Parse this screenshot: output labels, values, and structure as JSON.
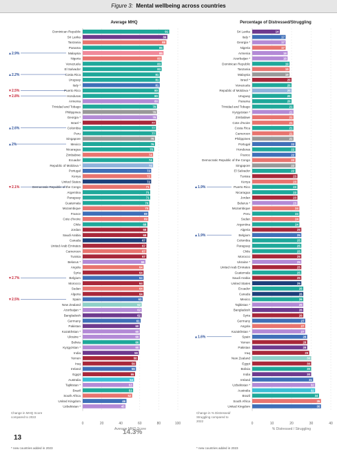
{
  "header": {
    "figure_label": "Figure 3:",
    "title": "Mental wellbeing across countries"
  },
  "page_number": "13",
  "left_note": "Change in MHQ Score compared to 2022",
  "right_note": "Change in % Distressed/ Struggling compared to 2022",
  "footnote": "* new countries added in 2023",
  "avg_badge": "14.3%",
  "colors": {
    "teal": "#1fa89a",
    "cyan": "#3cbfd6",
    "coral": "#e8746f",
    "pink": "#f08a9a",
    "blue": "#3f6fb8",
    "darkred": "#a8283a",
    "navy": "#1d3f7a",
    "gray": "#999999",
    "purple": "#6e3a8e",
    "lilac": "#b38ad6",
    "lightblue": "#8fb3dc",
    "lightteal": "#8fd0c8"
  },
  "chart_data": [
    {
      "type": "bar",
      "title": "Average MHQ",
      "xlabel": "Average MHQ Score",
      "xlim": [
        0,
        100
      ],
      "xticks": [
        "0",
        "20",
        "40",
        "60",
        "80",
        "100"
      ],
      "bars": [
        {
          "c": "Dominican Republic",
          "v": 91,
          "col": "teal"
        },
        {
          "c": "Sri Lanka",
          "v": 89,
          "col": "purple"
        },
        {
          "c": "Tanzania",
          "v": 88,
          "col": "coral"
        },
        {
          "c": "Panama",
          "v": 85,
          "col": "teal"
        },
        {
          "c": "Malaysia",
          "v": 85,
          "col": "pink",
          "ch": "▲2.9%"
        },
        {
          "c": "Nigeria",
          "v": 83,
          "col": "coral"
        },
        {
          "c": "Venezuela",
          "v": 83,
          "col": "teal"
        },
        {
          "c": "El Salvador",
          "v": 83,
          "col": "teal"
        },
        {
          "c": "Costa Rica",
          "v": 81,
          "col": "teal",
          "ch": "▲2.2%"
        },
        {
          "c": "Uruguay",
          "v": 81,
          "col": "teal"
        },
        {
          "c": "Italy *",
          "v": 81,
          "col": "blue"
        },
        {
          "c": "Puerto Rico",
          "v": 80,
          "col": "teal",
          "ch": "▼2.5%"
        },
        {
          "c": "Honduras",
          "v": 80,
          "col": "teal",
          "ch": "▼2.8%"
        },
        {
          "c": "Armenia",
          "v": 80,
          "col": "lilac"
        },
        {
          "c": "Trinidad and Tobago",
          "v": 78,
          "col": "teal"
        },
        {
          "c": "Philippines",
          "v": 78,
          "col": "gray"
        },
        {
          "c": "Georgia *",
          "v": 78,
          "col": "lilac"
        },
        {
          "c": "Israel *",
          "v": 77,
          "col": "darkred"
        },
        {
          "c": "Colombia",
          "v": 77,
          "col": "teal",
          "ch": "▲2.6%"
        },
        {
          "c": "Peru",
          "v": 77,
          "col": "teal"
        },
        {
          "c": "Singapore",
          "v": 76,
          "col": "gray"
        },
        {
          "c": "Mexico",
          "v": 76,
          "col": "teal",
          "ch": "▲2%"
        },
        {
          "c": "Nicaragua",
          "v": 75,
          "col": "teal"
        },
        {
          "c": "Zimbabwe",
          "v": 74,
          "col": "coral"
        },
        {
          "c": "Ecuador",
          "v": 74,
          "col": "teal"
        },
        {
          "c": "Republic of Moldova *",
          "v": 74,
          "col": "lightblue"
        },
        {
          "c": "Portugal",
          "v": 72,
          "col": "blue"
        },
        {
          "c": "Kenya",
          "v": 72,
          "col": "coral"
        },
        {
          "c": "United States",
          "v": 72,
          "col": "navy"
        },
        {
          "c": "Democratic Republic of the Congo",
          "v": 71,
          "col": "coral",
          "ch": "▼2.1%"
        },
        {
          "c": "Argentina",
          "v": 71,
          "col": "teal"
        },
        {
          "c": "Paraguay",
          "v": 71,
          "col": "teal"
        },
        {
          "c": "Guatemala",
          "v": 70,
          "col": "teal"
        },
        {
          "c": "Mozambique",
          "v": 70,
          "col": "coral"
        },
        {
          "c": "France",
          "v": 69,
          "col": "blue"
        },
        {
          "c": "Cote d'Ivoire",
          "v": 69,
          "col": "coral"
        },
        {
          "c": "Chile",
          "v": 68,
          "col": "teal"
        },
        {
          "c": "Jordan",
          "v": 68,
          "col": "darkred"
        },
        {
          "c": "Saudi Arabia",
          "v": 68,
          "col": "darkred"
        },
        {
          "c": "Canada",
          "v": 67,
          "col": "navy"
        },
        {
          "c": "United Arab Emirates",
          "v": 67,
          "col": "darkred"
        },
        {
          "c": "Cameroon",
          "v": 67,
          "col": "coral"
        },
        {
          "c": "Tunisia",
          "v": 67,
          "col": "darkred"
        },
        {
          "c": "Belarus *",
          "v": 66,
          "col": "lilac"
        },
        {
          "c": "Angola",
          "v": 64,
          "col": "coral"
        },
        {
          "c": "Syria",
          "v": 64,
          "col": "darkred"
        },
        {
          "c": "Belgium",
          "v": 64,
          "col": "blue",
          "ch": "▼2.7%"
        },
        {
          "c": "Morocco",
          "v": 64,
          "col": "darkred"
        },
        {
          "c": "Sudan",
          "v": 64,
          "col": "coral"
        },
        {
          "c": "Algeria",
          "v": 64,
          "col": "darkred"
        },
        {
          "c": "Spain",
          "v": 63,
          "col": "blue",
          "ch": "▼2.5%"
        },
        {
          "c": "New Zealand",
          "v": 62,
          "col": "lightteal"
        },
        {
          "c": "Azerbaijan *",
          "v": 62,
          "col": "lilac"
        },
        {
          "c": "Bangladesh",
          "v": 62,
          "col": "purple"
        },
        {
          "c": "Germany",
          "v": 61,
          "col": "blue"
        },
        {
          "c": "Pakistan",
          "v": 60,
          "col": "purple"
        },
        {
          "c": "Kazakhstan *",
          "v": 60,
          "col": "lilac"
        },
        {
          "c": "Ukraine *",
          "v": 60,
          "col": "lilac"
        },
        {
          "c": "Bolivia",
          "v": 60,
          "col": "teal"
        },
        {
          "c": "Kyrgyzstan *",
          "v": 60,
          "col": "lilac"
        },
        {
          "c": "India",
          "v": 59,
          "col": "purple"
        },
        {
          "c": "Yemen",
          "v": 58,
          "col": "darkred"
        },
        {
          "c": "Iraq",
          "v": 56,
          "col": "darkred"
        },
        {
          "c": "Ireland",
          "v": 56,
          "col": "blue"
        },
        {
          "c": "Egypt",
          "v": 55,
          "col": "darkred"
        },
        {
          "c": "Australia",
          "v": 54,
          "col": "cyan"
        },
        {
          "c": "Tajikistan *",
          "v": 53,
          "col": "lilac"
        },
        {
          "c": "Brazil",
          "v": 53,
          "col": "teal"
        },
        {
          "c": "South Africa",
          "v": 52,
          "col": "coral"
        },
        {
          "c": "United Kingdom",
          "v": 46,
          "col": "blue"
        },
        {
          "c": "Uzbekistan *",
          "v": 45,
          "col": "lilac"
        }
      ]
    },
    {
      "type": "bar",
      "title": "Percentage of Distressed/Struggling",
      "xlabel": "% Distressed / Struggling",
      "xlim": [
        0,
        40
      ],
      "xticks": [
        "0",
        "10",
        "20",
        "30",
        "40"
      ],
      "bars": [
        {
          "c": "Sri Lanka",
          "v": 14,
          "col": "purple"
        },
        {
          "c": "Italy *",
          "v": 17,
          "col": "blue"
        },
        {
          "c": "Georgia *",
          "v": 17,
          "col": "lilac"
        },
        {
          "c": "Nigeria",
          "v": 17,
          "col": "coral"
        },
        {
          "c": "Armenia",
          "v": 18,
          "col": "lilac"
        },
        {
          "c": "Azerbaijan *",
          "v": 18,
          "col": "lilac"
        },
        {
          "c": "Dominican Republic",
          "v": 19,
          "col": "teal"
        },
        {
          "c": "Tanzania",
          "v": 19,
          "col": "coral"
        },
        {
          "c": "Malaysia",
          "v": 19,
          "col": "gray"
        },
        {
          "c": "Israel *",
          "v": 20,
          "col": "darkred"
        },
        {
          "c": "Venezuela",
          "v": 20,
          "col": "teal"
        },
        {
          "c": "Republic of Moldova *",
          "v": 20,
          "col": "lightblue"
        },
        {
          "c": "Uruguay",
          "v": 20,
          "col": "teal"
        },
        {
          "c": "Panama",
          "v": 20,
          "col": "teal"
        },
        {
          "c": "Trinidad and Tobago",
          "v": 21,
          "col": "teal"
        },
        {
          "c": "Kyrgyzstan *",
          "v": 21,
          "col": "lilac"
        },
        {
          "c": "Zimbabwe",
          "v": 21,
          "col": "coral"
        },
        {
          "c": "Cote d'Ivoire",
          "v": 21,
          "col": "coral"
        },
        {
          "c": "Costa Rica",
          "v": 21,
          "col": "teal"
        },
        {
          "c": "Cameroon",
          "v": 21,
          "col": "coral"
        },
        {
          "c": "Philippines",
          "v": 21,
          "col": "gray"
        },
        {
          "c": "Portugal",
          "v": 22,
          "col": "blue"
        },
        {
          "c": "Honduras",
          "v": 22,
          "col": "teal"
        },
        {
          "c": "France",
          "v": 22,
          "col": "blue"
        },
        {
          "c": "Democratic Republic of the Congo",
          "v": 22,
          "col": "coral"
        },
        {
          "c": "Singapore",
          "v": 22,
          "col": "gray"
        },
        {
          "c": "El Salvador",
          "v": 22,
          "col": "teal"
        },
        {
          "c": "Tunisia",
          "v": 23,
          "col": "darkred"
        },
        {
          "c": "Kenya",
          "v": 23,
          "col": "coral"
        },
        {
          "c": "Puerto Rico",
          "v": 23,
          "col": "teal",
          "ch": "▲1.9%"
        },
        {
          "c": "Nicaragua",
          "v": 23,
          "col": "teal"
        },
        {
          "c": "Jordan",
          "v": 23,
          "col": "darkred"
        },
        {
          "c": "Belarus *",
          "v": 23,
          "col": "lilac"
        },
        {
          "c": "Mozambique",
          "v": 24,
          "col": "coral"
        },
        {
          "c": "Peru",
          "v": 24,
          "col": "teal"
        },
        {
          "c": "Sudan",
          "v": 24,
          "col": "coral"
        },
        {
          "c": "Argentina",
          "v": 24,
          "col": "teal"
        },
        {
          "c": "Algeria",
          "v": 25,
          "col": "darkred"
        },
        {
          "c": "Belgium",
          "v": 25,
          "col": "blue",
          "ch": "▲1.9%"
        },
        {
          "c": "Colombia",
          "v": 25,
          "col": "teal"
        },
        {
          "c": "Paraguay",
          "v": 25,
          "col": "teal"
        },
        {
          "c": "Chile",
          "v": 25,
          "col": "teal"
        },
        {
          "c": "Morocco",
          "v": 25,
          "col": "darkred"
        },
        {
          "c": "Ukraine *",
          "v": 25,
          "col": "lilac"
        },
        {
          "c": "United Arab Emirates",
          "v": 25,
          "col": "darkred"
        },
        {
          "c": "Guatemala",
          "v": 25,
          "col": "teal"
        },
        {
          "c": "Saudi Arabia",
          "v": 25,
          "col": "darkred"
        },
        {
          "c": "United States",
          "v": 25,
          "col": "navy"
        },
        {
          "c": "Ecuador",
          "v": 26,
          "col": "teal"
        },
        {
          "c": "Canada",
          "v": 26,
          "col": "navy"
        },
        {
          "c": "Mexico",
          "v": 26,
          "col": "teal"
        },
        {
          "c": "Tajikistan *",
          "v": 26,
          "col": "lilac"
        },
        {
          "c": "Bangladesh",
          "v": 26,
          "col": "purple"
        },
        {
          "c": "Syria",
          "v": 26,
          "col": "darkred"
        },
        {
          "c": "Germany",
          "v": 27,
          "col": "blue"
        },
        {
          "c": "Angola",
          "v": 27,
          "col": "coral"
        },
        {
          "c": "Kazakhstan *",
          "v": 27,
          "col": "lilac"
        },
        {
          "c": "Spain",
          "v": 28,
          "col": "blue",
          "ch": "▲1.6%"
        },
        {
          "c": "Yemen",
          "v": 28,
          "col": "darkred"
        },
        {
          "c": "Pakistan",
          "v": 28,
          "col": "purple"
        },
        {
          "c": "Iraq",
          "v": 29,
          "col": "darkred"
        },
        {
          "c": "New Zealand",
          "v": 30,
          "col": "lightteal"
        },
        {
          "c": "Egypt",
          "v": 30,
          "col": "darkred"
        },
        {
          "c": "Bolivia",
          "v": 30,
          "col": "teal"
        },
        {
          "c": "India",
          "v": 30,
          "col": "purple"
        },
        {
          "c": "Ireland",
          "v": 31,
          "col": "blue"
        },
        {
          "c": "Uzbekistan *",
          "v": 32,
          "col": "lilac"
        },
        {
          "c": "Australia",
          "v": 32,
          "col": "cyan"
        },
        {
          "c": "Brazil",
          "v": 34,
          "col": "teal"
        },
        {
          "c": "South Africa",
          "v": 35,
          "col": "coral"
        },
        {
          "c": "United Kingdom",
          "v": 35,
          "col": "blue"
        }
      ]
    }
  ]
}
